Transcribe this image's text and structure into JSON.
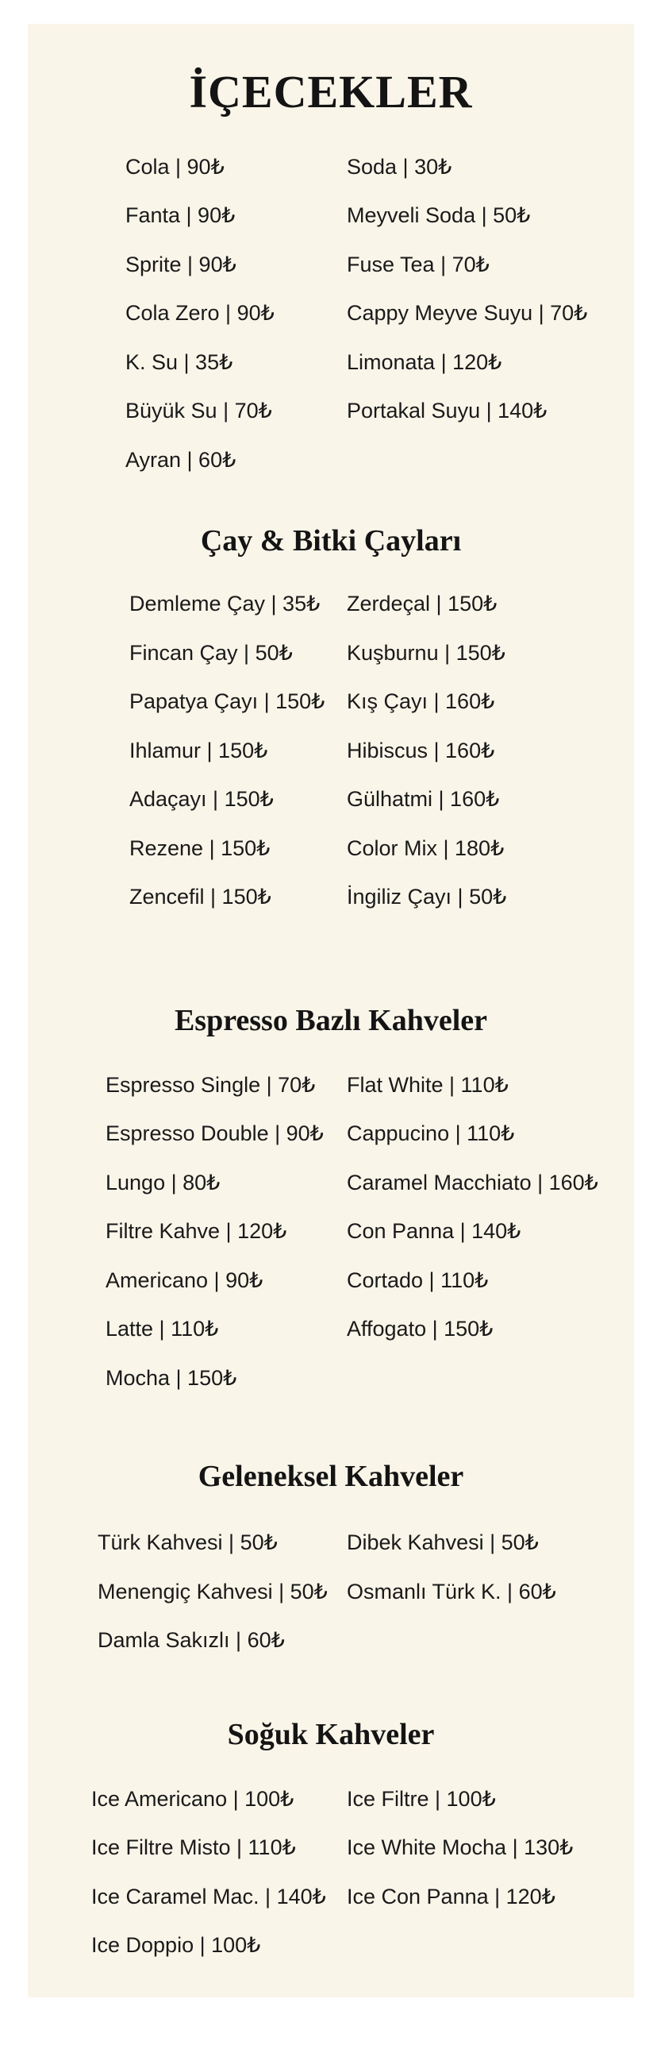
{
  "colors": {
    "page_background": "#ffffff",
    "panel_background": "#faf5e9",
    "text": "#161616"
  },
  "currency_symbol": "₺",
  "title": "İÇECEKLER",
  "sections": [
    {
      "heading": "",
      "left": [
        "Cola | 90₺",
        "Fanta | 90₺",
        "Sprite | 90₺",
        "Cola Zero | 90₺",
        "K. Su | 35₺",
        "Büyük Su | 70₺",
        "Ayran | 60₺"
      ],
      "right": [
        "Soda | 30₺",
        "Meyveli Soda | 50₺",
        "Fuse Tea | 70₺",
        "Cappy Meyve Suyu | 70₺",
        "Limonata | 120₺",
        "Portakal Suyu | 140₺"
      ]
    },
    {
      "heading": "Çay & Bitki Çayları",
      "left": [
        "Demleme Çay | 35₺",
        "Fincan Çay | 50₺",
        "Papatya Çayı | 150₺",
        "Ihlamur | 150₺",
        "Adaçayı | 150₺",
        "Rezene | 150₺",
        "Zencefil | 150₺"
      ],
      "right": [
        "Zerdeçal | 150₺",
        "Kuşburnu | 150₺",
        "Kış Çayı | 160₺",
        "Hibiscus | 160₺",
        "Gülhatmi | 160₺",
        "Color Mix | 180₺",
        "İngiliz Çayı | 50₺"
      ]
    },
    {
      "heading": "Espresso Bazlı Kahveler",
      "left": [
        "Espresso Single | 70₺",
        "Espresso Double | 90₺",
        "Lungo | 80₺",
        "Filtre Kahve | 120₺",
        "Americano | 90₺",
        "Latte | 110₺",
        "Mocha | 150₺"
      ],
      "right": [
        "Flat White | 110₺",
        "Cappucino | 110₺",
        "Caramel Macchiato | 160₺",
        "Con Panna | 140₺",
        "Cortado | 110₺",
        "Affogato | 150₺"
      ]
    },
    {
      "heading": "Geleneksel Kahveler",
      "left": [
        "Türk Kahvesi | 50₺",
        "Menengiç Kahvesi |  50₺",
        "Damla Sakızlı | 60₺"
      ],
      "right": [
        "Dibek Kahvesi | 50₺",
        "Osmanlı Türk K. | 60₺"
      ]
    },
    {
      "heading": "Soğuk Kahveler",
      "left": [
        "Ice Americano | 100₺",
        "Ice Filtre Misto | 110₺",
        "Ice Caramel Mac. | 140₺",
        "Ice Doppio | 100₺"
      ],
      "right": [
        "Ice Filtre | 100₺",
        "Ice White Mocha | 130₺",
        "Ice Con Panna | 120₺"
      ]
    }
  ]
}
